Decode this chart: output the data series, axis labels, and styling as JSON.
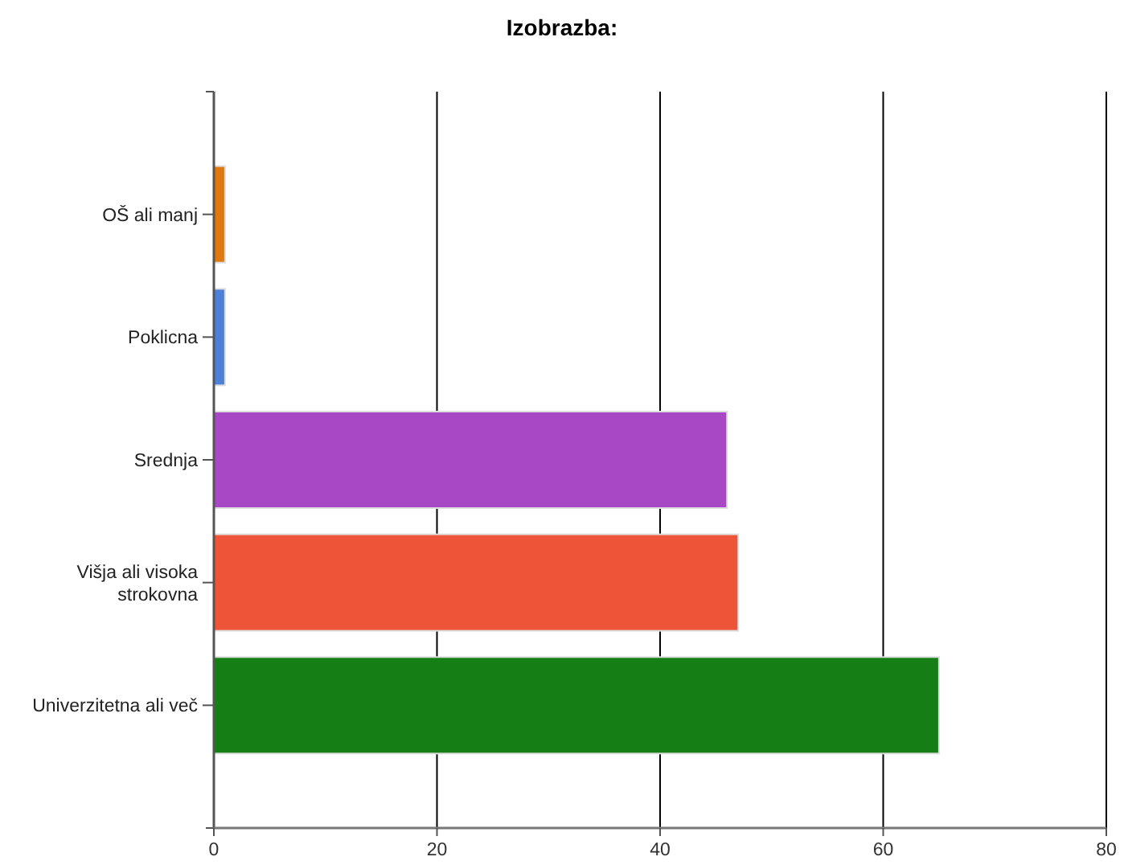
{
  "chart_data": {
    "type": "bar",
    "orientation": "horizontal",
    "title": "Izobrazba:",
    "categories": [
      "OŠ ali manj",
      "Poklicna",
      "Srednja",
      "Višja ali visoka strokovna",
      "Univerzitetna ali več"
    ],
    "values": [
      1,
      1,
      46,
      47,
      65
    ],
    "colors": [
      "#e07810",
      "#4f80d8",
      "#a848c4",
      "#ee5438",
      "#157f15"
    ],
    "xlim": [
      0,
      80
    ],
    "xticks": [
      0,
      20,
      40,
      60,
      80
    ],
    "grid": "x"
  }
}
